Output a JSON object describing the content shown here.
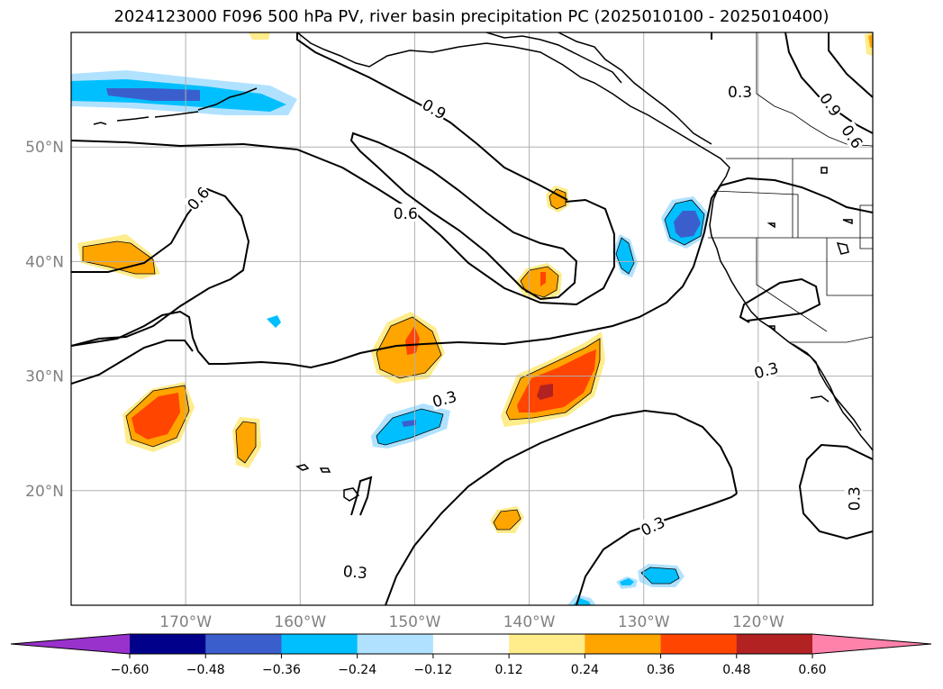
{
  "title": "2024123000 F096 500 hPa PV, river basin precipitation PC (2025010100 - 2025010400)",
  "map": {
    "projection": "PlateCarree",
    "lon_range": [
      -180,
      -110
    ],
    "lat_range": [
      10,
      60
    ],
    "lon_ticks": [
      {
        "lon": -170,
        "label": "170°W"
      },
      {
        "lon": -160,
        "label": "160°W"
      },
      {
        "lon": -150,
        "label": "150°W"
      },
      {
        "lon": -140,
        "label": "140°W"
      },
      {
        "lon": -130,
        "label": "130°W"
      },
      {
        "lon": -120,
        "label": "120°W"
      }
    ],
    "lat_ticks": [
      {
        "lat": 50,
        "label": "50°N"
      },
      {
        "lat": 40,
        "label": "40°N"
      },
      {
        "lat": 30,
        "label": "30°N"
      },
      {
        "lat": 20,
        "label": "20°N"
      }
    ],
    "grid": true,
    "tick_label_color": "#808080"
  },
  "contour_labels": [
    {
      "text": "0.6",
      "lon": -150.8,
      "lat": 44.2,
      "rot": 0
    },
    {
      "text": "0.9",
      "lon": -148.3,
      "lat": 53.3,
      "rot": 30
    },
    {
      "text": "0.6",
      "lon": -168.9,
      "lat": 45.5,
      "rot": -50
    },
    {
      "text": "0.3",
      "lon": -155.2,
      "lat": 12.9,
      "rot": 5
    },
    {
      "text": "0.3",
      "lon": -121.6,
      "lat": 54.8,
      "rot": 0
    },
    {
      "text": "0.9",
      "lon": -113.7,
      "lat": 53.7,
      "rot": 55
    },
    {
      "text": "0.6",
      "lon": -111.8,
      "lat": 50.9,
      "rot": 55
    },
    {
      "text": "0.3",
      "lon": -147.4,
      "lat": 28.0,
      "rot": -15
    },
    {
      "text": "0.3",
      "lon": -119.3,
      "lat": 30.5,
      "rot": -15
    },
    {
      "text": "0.3",
      "lon": -129.2,
      "lat": 16.9,
      "rot": -25
    },
    {
      "text": "0.3",
      "lon": -111.6,
      "lat": 19.3,
      "rot": -90
    }
  ],
  "colorbar": {
    "colors": [
      "#9932cc",
      "#00008b",
      "#3a5fcd",
      "#00bfff",
      "#b0e2ff",
      "#ffffff",
      "#ffec8b",
      "#ffa500",
      "#ff4500",
      "#b22222",
      "#ff82ab"
    ],
    "ticks": [
      "−0.60",
      "−0.48",
      "−0.36",
      "−0.24",
      "−0.12",
      "0.12",
      "0.24",
      "0.36",
      "0.48",
      "0.60"
    ],
    "extend": "both"
  }
}
